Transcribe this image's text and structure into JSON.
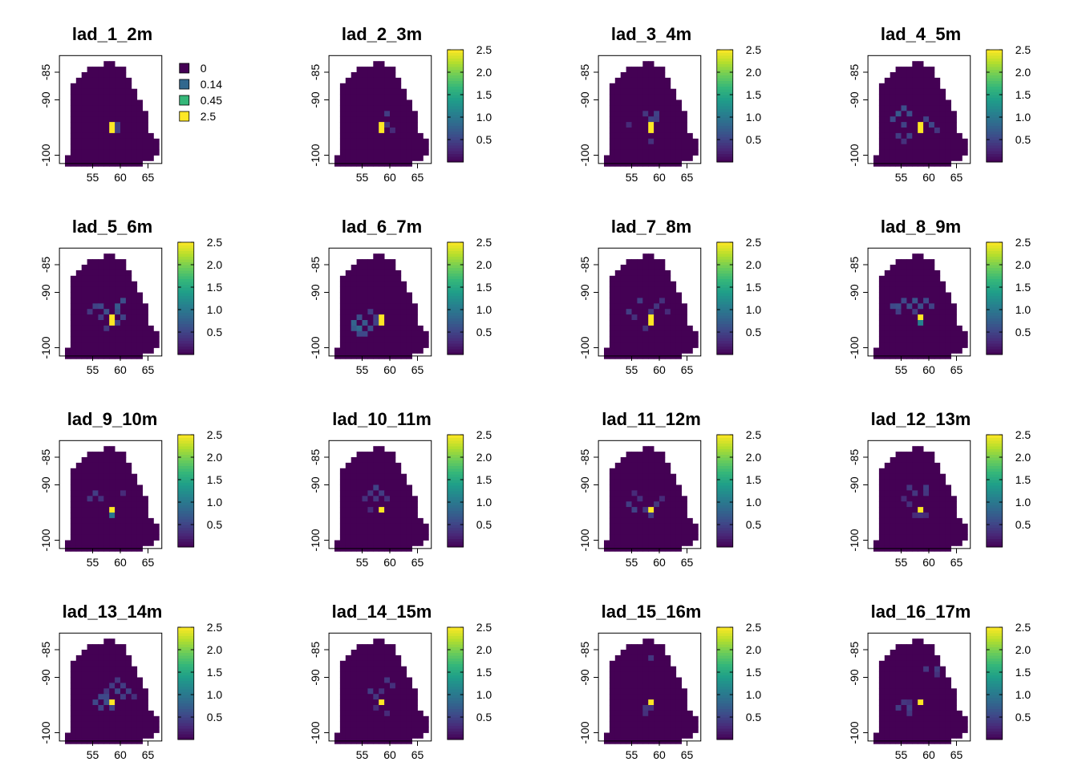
{
  "chart_data": {
    "type": "heatmap",
    "x_ticks": [
      "55",
      "60",
      "65"
    ],
    "y_ticks": [
      "-85",
      "-90",
      "-100"
    ],
    "x_range": [
      49,
      68
    ],
    "y_range": [
      -102,
      -82
    ],
    "colorbar": {
      "range": [
        0,
        2.5
      ],
      "ticks": [
        "0.5",
        "1.0",
        "1.5",
        "2.0",
        "2.5"
      ]
    },
    "categorical_legend": {
      "labels": [
        "0",
        "0.14",
        "0.45",
        "2.5"
      ],
      "colors": [
        "#440154",
        "#31688E",
        "#35B779",
        "#FDE725"
      ]
    },
    "color_scale": [
      "#440154",
      "#31688E",
      "#35B779",
      "#FDE725"
    ],
    "panels": [
      {
        "title": "lad_1_2m",
        "legend": "categorical",
        "hotspots": [
          [
            58.5,
            -95.5,
            2.5
          ],
          [
            59.5,
            -95.5,
            0.45
          ],
          [
            58.5,
            -94.5,
            2.5
          ],
          [
            59.5,
            -94.5,
            0.45
          ]
        ]
      },
      {
        "title": "lad_2_3m",
        "legend": "continuous",
        "hotspots": [
          [
            58.5,
            -95.5,
            2.5
          ],
          [
            58.5,
            -94.5,
            2.5
          ],
          [
            59.5,
            -92.5,
            0.45
          ],
          [
            59.5,
            -94.5,
            0.35
          ],
          [
            60.5,
            -95.5,
            0.3
          ]
        ]
      },
      {
        "title": "lad_3_4m",
        "legend": "continuous",
        "hotspots": [
          [
            58.5,
            -95.5,
            2.5
          ],
          [
            58.5,
            -94.5,
            2.5
          ],
          [
            58.5,
            -93.5,
            0.5
          ],
          [
            59.5,
            -92.5,
            0.5
          ],
          [
            57.5,
            -92.5,
            0.4
          ],
          [
            59.5,
            -93.5,
            0.45
          ],
          [
            54.5,
            -94.5,
            0.3
          ],
          [
            58.5,
            -97.5,
            0.35
          ]
        ]
      },
      {
        "title": "lad_4_5m",
        "legend": "continuous",
        "hotspots": [
          [
            58.5,
            -95.5,
            2.5
          ],
          [
            58.5,
            -94.5,
            2.5
          ],
          [
            54.5,
            -92.5,
            0.7
          ],
          [
            55.5,
            -91.5,
            0.6
          ],
          [
            56.5,
            -92.5,
            0.6
          ],
          [
            53.5,
            -93.5,
            0.55
          ],
          [
            55.5,
            -94.5,
            0.5
          ],
          [
            54.5,
            -96.5,
            0.45
          ],
          [
            56.5,
            -96.5,
            0.5
          ],
          [
            59.5,
            -93.5,
            0.5
          ],
          [
            60.5,
            -94.5,
            0.55
          ],
          [
            61.5,
            -95.5,
            0.4
          ],
          [
            55.5,
            -97.5,
            0.35
          ]
        ]
      },
      {
        "title": "lad_5_6m",
        "legend": "continuous",
        "hotspots": [
          [
            58.5,
            -95.5,
            2.5
          ],
          [
            58.5,
            -94.5,
            2.5
          ],
          [
            55.5,
            -92.5,
            0.5
          ],
          [
            56.5,
            -92.5,
            0.55
          ],
          [
            59.5,
            -92.5,
            0.7
          ],
          [
            60.5,
            -91.5,
            0.6
          ],
          [
            57.5,
            -93.5,
            0.6
          ],
          [
            59.5,
            -93.5,
            0.6
          ],
          [
            56.5,
            -94.5,
            0.45
          ],
          [
            60.5,
            -94.5,
            0.5
          ],
          [
            59.5,
            -95.5,
            0.45
          ],
          [
            57.5,
            -96.5,
            0.4
          ],
          [
            54.5,
            -93.5,
            0.4
          ]
        ]
      },
      {
        "title": "lad_6_7m",
        "legend": "continuous",
        "hotspots": [
          [
            58.5,
            -95.5,
            2.5
          ],
          [
            58.5,
            -94.5,
            2.5
          ],
          [
            53.5,
            -95.5,
            0.8
          ],
          [
            54.5,
            -96.5,
            0.85
          ],
          [
            55.5,
            -95.5,
            0.7
          ],
          [
            54.5,
            -94.5,
            0.6
          ],
          [
            53.5,
            -96.5,
            0.7
          ],
          [
            55.5,
            -97.5,
            0.55
          ],
          [
            56.5,
            -96.5,
            0.6
          ],
          [
            57.5,
            -95.5,
            0.5
          ],
          [
            56.5,
            -93.5,
            0.45
          ],
          [
            54.5,
            -97.5,
            0.55
          ],
          [
            57.5,
            -94.5,
            0.45
          ]
        ]
      },
      {
        "title": "lad_7_8m",
        "legend": "continuous",
        "hotspots": [
          [
            58.5,
            -95.5,
            2.5
          ],
          [
            58.5,
            -94.5,
            2.5
          ],
          [
            54.5,
            -93.5,
            0.45
          ],
          [
            56.5,
            -91.5,
            0.45
          ],
          [
            58.5,
            -93.5,
            0.4
          ],
          [
            60.5,
            -91.5,
            0.35
          ],
          [
            59.5,
            -92.5,
            0.4
          ],
          [
            55.5,
            -94.5,
            0.35
          ],
          [
            57.5,
            -96.5,
            0.35
          ],
          [
            61.5,
            -93.5,
            0.3
          ]
        ]
      },
      {
        "title": "lad_8_9m",
        "legend": "continuous",
        "hotspots": [
          [
            58.5,
            -94.5,
            2.5
          ],
          [
            58.5,
            -95.5,
            1.1
          ],
          [
            53.5,
            -92.5,
            0.55
          ],
          [
            54.5,
            -92.5,
            0.6
          ],
          [
            55.5,
            -91.5,
            0.55
          ],
          [
            56.5,
            -92.5,
            0.6
          ],
          [
            57.5,
            -91.5,
            0.65
          ],
          [
            58.5,
            -92.5,
            0.6
          ],
          [
            59.5,
            -91.5,
            0.55
          ],
          [
            60.5,
            -92.5,
            0.5
          ],
          [
            54.5,
            -93.5,
            0.45
          ],
          [
            57.5,
            -93.5,
            0.45
          ]
        ]
      },
      {
        "title": "lad_9_10m",
        "legend": "continuous",
        "hotspots": [
          [
            58.5,
            -94.5,
            2.5
          ],
          [
            58.5,
            -95.5,
            1.0
          ],
          [
            55.5,
            -91.5,
            0.45
          ],
          [
            54.5,
            -92.5,
            0.4
          ],
          [
            60.5,
            -91.5,
            0.3
          ],
          [
            56.5,
            -92.5,
            0.35
          ]
        ]
      },
      {
        "title": "lad_10_11m",
        "legend": "continuous",
        "hotspots": [
          [
            58.5,
            -94.5,
            2.5
          ],
          [
            57.5,
            -90.5,
            0.5
          ],
          [
            58.5,
            -91.5,
            0.45
          ],
          [
            56.5,
            -91.5,
            0.4
          ],
          [
            55.5,
            -92.5,
            0.35
          ],
          [
            57.5,
            -92.5,
            0.4
          ],
          [
            59.5,
            -92.5,
            0.35
          ],
          [
            56.5,
            -94.5,
            0.3
          ]
        ]
      },
      {
        "title": "lad_11_12m",
        "legend": "continuous",
        "hotspots": [
          [
            58.5,
            -94.5,
            2.5
          ],
          [
            54.5,
            -93.5,
            0.45
          ],
          [
            55.5,
            -94.5,
            0.5
          ],
          [
            57.5,
            -94.5,
            0.4
          ],
          [
            58.5,
            -95.5,
            0.45
          ],
          [
            59.5,
            -93.5,
            0.4
          ],
          [
            56.5,
            -92.5,
            0.35
          ],
          [
            55.5,
            -91.5,
            0.3
          ],
          [
            60.5,
            -92.5,
            0.3
          ]
        ]
      },
      {
        "title": "lad_12_13m",
        "legend": "continuous",
        "hotspots": [
          [
            58.5,
            -94.5,
            2.5
          ],
          [
            56.5,
            -90.5,
            0.4
          ],
          [
            57.5,
            -91.5,
            0.4
          ],
          [
            59.5,
            -90.5,
            0.45
          ],
          [
            59.5,
            -91.5,
            0.4
          ],
          [
            56.5,
            -93.5,
            0.35
          ],
          [
            58.5,
            -95.5,
            0.35
          ],
          [
            59.5,
            -95.5,
            0.3
          ],
          [
            57.5,
            -95.5,
            0.3
          ],
          [
            55.5,
            -92.5,
            0.3
          ]
        ]
      },
      {
        "title": "lad_13_14m",
        "legend": "continuous",
        "hotspots": [
          [
            58.5,
            -94.5,
            2.5
          ],
          [
            58.5,
            -95.5,
            0.5
          ],
          [
            55.5,
            -94.5,
            0.55
          ],
          [
            56.5,
            -93.5,
            0.55
          ],
          [
            57.5,
            -94.5,
            0.6
          ],
          [
            57.5,
            -93.5,
            0.55
          ],
          [
            59.5,
            -92.5,
            0.55
          ],
          [
            60.5,
            -91.5,
            0.45
          ],
          [
            61.5,
            -92.5,
            0.5
          ],
          [
            58.5,
            -91.5,
            0.45
          ],
          [
            60.5,
            -93.5,
            0.45
          ],
          [
            56.5,
            -95.5,
            0.5
          ],
          [
            57.5,
            -92.5,
            0.4
          ],
          [
            59.5,
            -90.5,
            0.4
          ],
          [
            62.5,
            -93.5,
            0.35
          ]
        ]
      },
      {
        "title": "lad_14_15m",
        "legend": "continuous",
        "hotspots": [
          [
            58.5,
            -94.5,
            2.5
          ],
          [
            56.5,
            -92.5,
            0.45
          ],
          [
            57.5,
            -93.5,
            0.4
          ],
          [
            59.5,
            -90.5,
            0.4
          ],
          [
            60.5,
            -91.5,
            0.35
          ],
          [
            58.5,
            -92.5,
            0.35
          ],
          [
            57.5,
            -95.5,
            0.3
          ],
          [
            59.5,
            -96.5,
            0.3
          ]
        ]
      },
      {
        "title": "lad_15_16m",
        "legend": "continuous",
        "hotspots": [
          [
            58.5,
            -94.5,
            2.5
          ],
          [
            58.5,
            -86.5,
            0.4
          ],
          [
            57.5,
            -95.5,
            0.4
          ],
          [
            58.5,
            -95.5,
            0.35
          ],
          [
            57.5,
            -96.5,
            0.35
          ]
        ]
      },
      {
        "title": "lad_16_17m",
        "legend": "continuous",
        "hotspots": [
          [
            58.5,
            -94.5,
            2.5
          ],
          [
            56.5,
            -95.5,
            0.5
          ],
          [
            55.5,
            -94.5,
            0.4
          ],
          [
            54.5,
            -95.5,
            0.45
          ],
          [
            56.5,
            -96.5,
            0.4
          ],
          [
            59.5,
            -88.5,
            0.4
          ],
          [
            61.5,
            -88.5,
            0.45
          ],
          [
            61.5,
            -89.5,
            0.35
          ],
          [
            56.5,
            -94.5,
            0.35
          ]
        ]
      }
    ]
  }
}
